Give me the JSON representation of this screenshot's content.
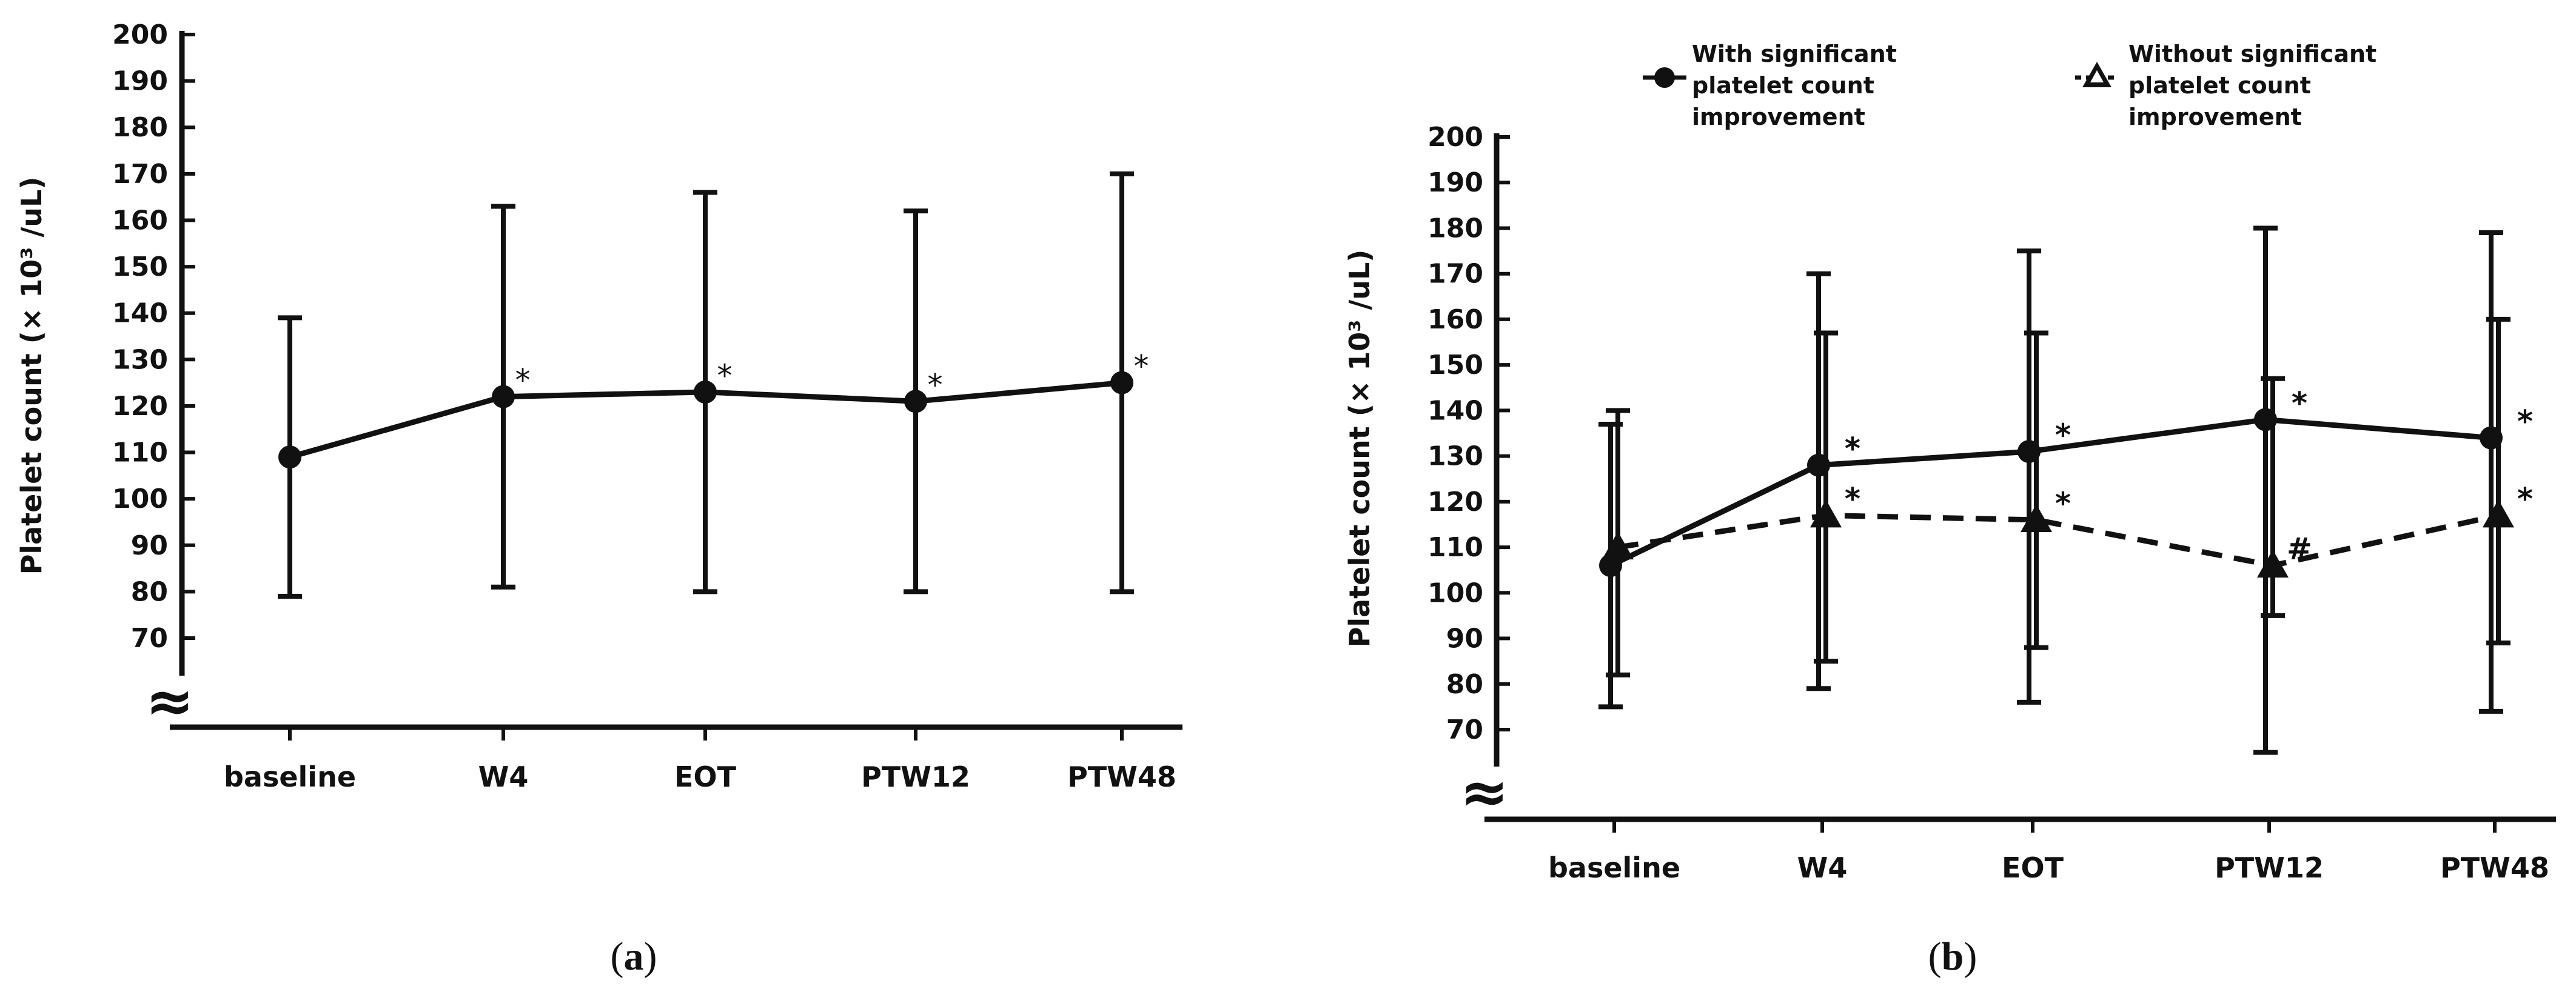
{
  "chart_data": [
    {
      "panel_label": "(a)",
      "panel_letter": "a",
      "type": "line",
      "ylabel": "Platelet count (× 10³ /uL)",
      "ylim": [
        70,
        200
      ],
      "yticks": [
        70,
        80,
        90,
        100,
        110,
        120,
        130,
        140,
        150,
        160,
        170,
        180,
        190,
        200
      ],
      "categories": [
        "baseline",
        "W4",
        "EOT",
        "PTW12",
        "PTW48"
      ],
      "axis_break_symbol": "≈",
      "series": [
        {
          "name": "Platelet count",
          "marker": "circle",
          "line_style": "solid",
          "values": [
            109,
            122,
            123,
            121,
            125
          ],
          "err_low": [
            79,
            81,
            80,
            80,
            80
          ],
          "err_high": [
            139,
            163,
            166,
            162,
            170
          ],
          "annotations": [
            "",
            "*",
            "*",
            "*",
            "*"
          ]
        }
      ]
    },
    {
      "panel_label": "(b)",
      "panel_letter": "b",
      "type": "line",
      "ylabel": "Platelet count (× 10³ /uL)",
      "ylim": [
        70,
        200
      ],
      "yticks": [
        70,
        80,
        90,
        100,
        110,
        120,
        130,
        140,
        150,
        160,
        170,
        180,
        190,
        200
      ],
      "categories": [
        "baseline",
        "W4",
        "EOT",
        "PTW12",
        "PTW48"
      ],
      "axis_break_symbol": "≈",
      "legend_position": "top",
      "series": [
        {
          "name": "With significant platelet count improvement",
          "legend_lines": [
            "With significant",
            "platelet count",
            "improvement"
          ],
          "marker": "circle",
          "line_style": "solid",
          "values": [
            106,
            128,
            131,
            138,
            134
          ],
          "err_low": [
            75,
            79,
            76,
            65,
            74
          ],
          "err_high": [
            137,
            170,
            175,
            180,
            179
          ],
          "annotations": [
            "",
            "*",
            "*",
            "*",
            "*"
          ]
        },
        {
          "name": "Without significant platelet count improvement",
          "legend_lines": [
            "Without significant",
            "platelet count",
            "improvement"
          ],
          "marker": "triangle",
          "line_style": "dashed",
          "values": [
            110,
            117,
            116,
            106,
            117
          ],
          "err_low": [
            82,
            85,
            88,
            95,
            89
          ],
          "err_high": [
            140,
            157,
            157,
            147,
            160
          ],
          "annotations": [
            "",
            "*",
            "*",
            "#",
            "*"
          ]
        }
      ]
    }
  ]
}
